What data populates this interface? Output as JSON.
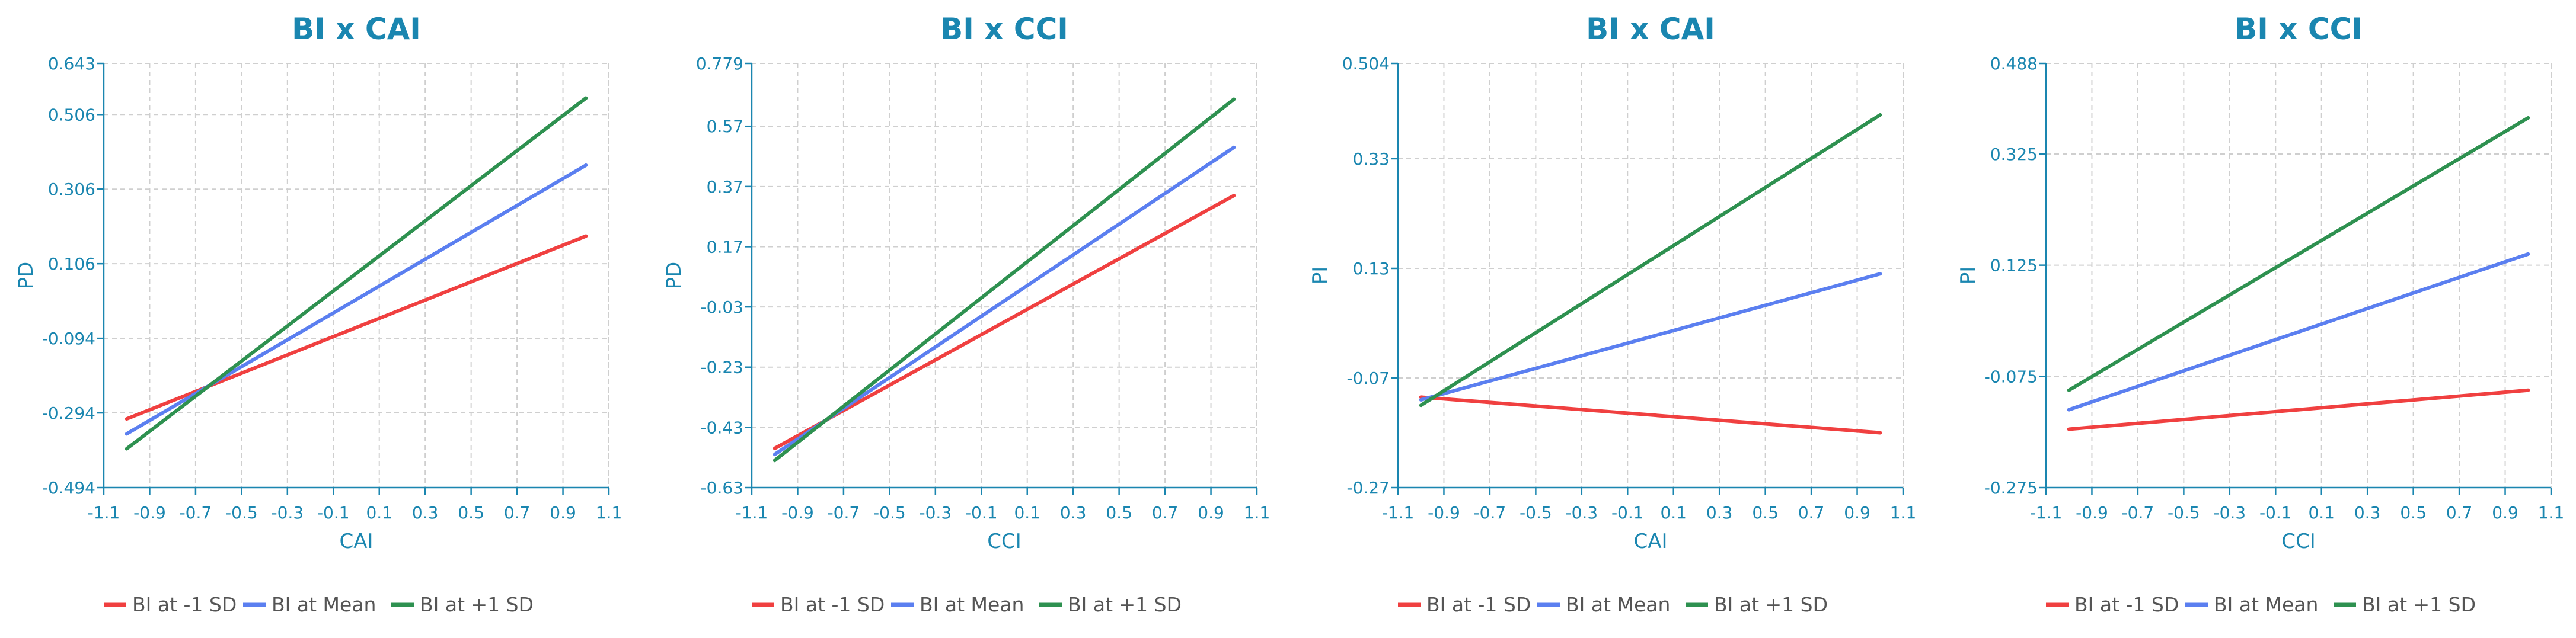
{
  "chart_data": [
    {
      "type": "line",
      "title": "BI x CAI",
      "xlabel": "CAI",
      "ylabel": "PD",
      "xlim": [
        -1.1,
        1.1
      ],
      "ylim": [
        -0.494,
        0.643
      ],
      "xticks": [
        "-1.1",
        "-0.9",
        "-0.7",
        "-0.5",
        "-0.3",
        "-0.1",
        "0.1",
        "0.3",
        "0.5",
        "0.7",
        "0.9",
        "1.1"
      ],
      "yticks": [
        "-0.494",
        "-0.294",
        "-0.094",
        "0.106",
        "0.306",
        "0.506",
        "0.643"
      ],
      "series": [
        {
          "name": "BI at -1 SD",
          "color": "#f04040",
          "x": [
            -1.0,
            1.0
          ],
          "y": [
            -0.31,
            0.18
          ]
        },
        {
          "name": "BI at Mean",
          "color": "#5b7ff0",
          "x": [
            -1.0,
            1.0
          ],
          "y": [
            -0.35,
            0.37
          ]
        },
        {
          "name": "BI at +1 SD",
          "color": "#2e9150",
          "x": [
            -1.0,
            1.0
          ],
          "y": [
            -0.39,
            0.55
          ]
        }
      ]
    },
    {
      "type": "line",
      "title": "BI x CCI",
      "xlabel": "CCI",
      "ylabel": "PD",
      "xlim": [
        -1.1,
        1.1
      ],
      "ylim": [
        -0.63,
        0.779
      ],
      "xticks": [
        "-1.1",
        "-0.9",
        "-0.7",
        "-0.5",
        "-0.3",
        "-0.1",
        "0.1",
        "0.3",
        "0.5",
        "0.7",
        "0.9",
        "1.1"
      ],
      "yticks": [
        "-0.63",
        "-0.43",
        "-0.23",
        "-0.03",
        "0.17",
        "0.37",
        "0.57",
        "0.779"
      ],
      "series": [
        {
          "name": "BI at -1 SD",
          "color": "#f04040",
          "x": [
            -1.0,
            1.0
          ],
          "y": [
            -0.5,
            0.34
          ]
        },
        {
          "name": "BI at Mean",
          "color": "#5b7ff0",
          "x": [
            -1.0,
            1.0
          ],
          "y": [
            -0.52,
            0.5
          ]
        },
        {
          "name": "BI at +1 SD",
          "color": "#2e9150",
          "x": [
            -1.0,
            1.0
          ],
          "y": [
            -0.54,
            0.66
          ]
        }
      ]
    },
    {
      "type": "line",
      "title": "BI x CAI",
      "xlabel": "CAI",
      "ylabel": "PI",
      "xlim": [
        -1.1,
        1.1
      ],
      "ylim": [
        -0.27,
        0.504
      ],
      "xticks": [
        "-1.1",
        "-0.9",
        "-0.7",
        "-0.5",
        "-0.3",
        "-0.1",
        "0.1",
        "0.3",
        "0.5",
        "0.7",
        "0.9",
        "1.1"
      ],
      "yticks": [
        "-0.27",
        "-0.07",
        "0.13",
        "0.33",
        "0.504"
      ],
      "series": [
        {
          "name": "BI at -1 SD",
          "color": "#f04040",
          "x": [
            -1.0,
            1.0
          ],
          "y": [
            -0.105,
            -0.17
          ]
        },
        {
          "name": "BI at Mean",
          "color": "#5b7ff0",
          "x": [
            -1.0,
            1.0
          ],
          "y": [
            -0.11,
            0.12
          ]
        },
        {
          "name": "BI at +1 SD",
          "color": "#2e9150",
          "x": [
            -1.0,
            1.0
          ],
          "y": [
            -0.12,
            0.41
          ]
        }
      ]
    },
    {
      "type": "line",
      "title": "BI x CCI",
      "xlabel": "CCI",
      "ylabel": "PI",
      "xlim": [
        -1.1,
        1.1
      ],
      "ylim": [
        -0.275,
        0.488
      ],
      "xticks": [
        "-1.1",
        "-0.9",
        "-0.7",
        "-0.5",
        "-0.3",
        "-0.1",
        "0.1",
        "0.3",
        "0.5",
        "0.7",
        "0.9",
        "1.1"
      ],
      "yticks": [
        "-0.275",
        "-0.075",
        "0.125",
        "0.325",
        "0.488"
      ],
      "series": [
        {
          "name": "BI at -1 SD",
          "color": "#f04040",
          "x": [
            -1.0,
            1.0
          ],
          "y": [
            -0.17,
            -0.1
          ]
        },
        {
          "name": "BI at Mean",
          "color": "#5b7ff0",
          "x": [
            -1.0,
            1.0
          ],
          "y": [
            -0.135,
            0.145
          ]
        },
        {
          "name": "BI at +1 SD",
          "color": "#2e9150",
          "x": [
            -1.0,
            1.0
          ],
          "y": [
            -0.1,
            0.39
          ]
        }
      ]
    }
  ]
}
